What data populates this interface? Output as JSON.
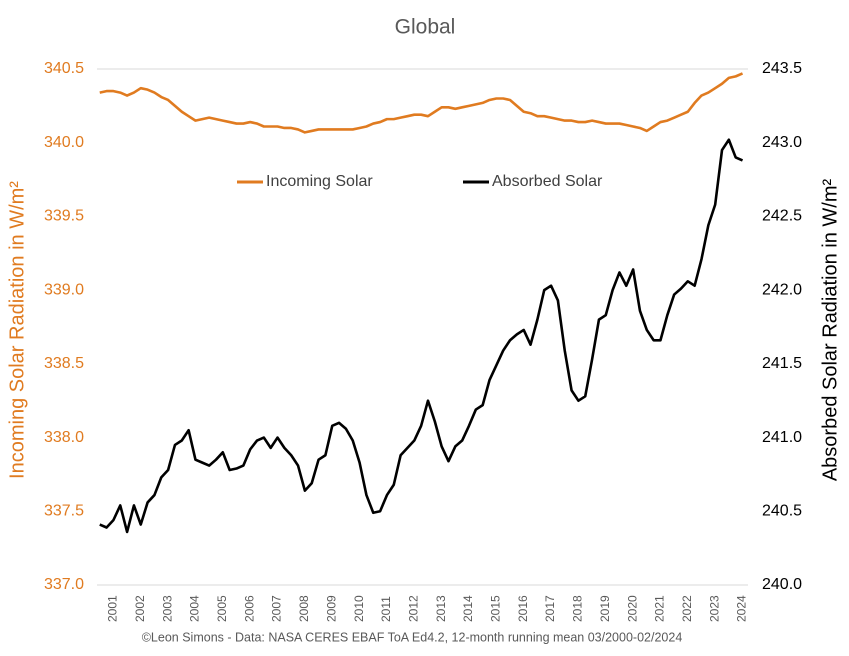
{
  "chart_data": {
    "type": "line",
    "title": "Global",
    "y_label": "Incoming Solar Radiation in W/m²",
    "y2_label": "Absorbed Solar Radiation in W/m²",
    "source": "©Leon Simons -  Data: NASA CERES EBAF ToA Ed4.2, 12-month running mean 03/2000-02/2024",
    "legend": "top-center",
    "x": [
      2000.5,
      2000.75,
      2001,
      2001.25,
      2001.5,
      2001.75,
      2002,
      2002.25,
      2002.5,
      2002.75,
      2003,
      2003.25,
      2003.5,
      2003.75,
      2004,
      2004.25,
      2004.5,
      2004.75,
      2005,
      2005.25,
      2005.5,
      2005.75,
      2006,
      2006.25,
      2006.5,
      2006.75,
      2007,
      2007.25,
      2007.5,
      2007.75,
      2008,
      2008.25,
      2008.5,
      2008.75,
      2009,
      2009.25,
      2009.5,
      2009.75,
      2010,
      2010.25,
      2010.5,
      2010.75,
      2011,
      2011.25,
      2011.5,
      2011.75,
      2012,
      2012.25,
      2012.5,
      2012.75,
      2013,
      2013.25,
      2013.5,
      2013.75,
      2014,
      2014.25,
      2014.5,
      2014.75,
      2015,
      2015.25,
      2015.5,
      2015.75,
      2016,
      2016.25,
      2016.5,
      2016.75,
      2017,
      2017.25,
      2017.5,
      2017.75,
      2018,
      2018.25,
      2018.5,
      2018.75,
      2019,
      2019.25,
      2019.5,
      2019.75,
      2020,
      2020.25,
      2020.5,
      2020.75,
      2021,
      2021.25,
      2021.5,
      2021.75,
      2022,
      2022.25,
      2022.5,
      2022.75,
      2023,
      2023.25,
      2023.5,
      2023.75,
      2024
    ],
    "series": [
      {
        "name": "Incoming Solar",
        "color": "#e07b20",
        "values": [
          340.34,
          340.35,
          340.35,
          340.34,
          340.32,
          340.34,
          340.37,
          340.36,
          340.34,
          340.31,
          340.29,
          340.25,
          340.21,
          340.18,
          340.15,
          340.16,
          340.17,
          340.16,
          340.15,
          340.14,
          340.13,
          340.13,
          340.14,
          340.13,
          340.11,
          340.11,
          340.11,
          340.1,
          340.1,
          340.09,
          340.07,
          340.08,
          340.09,
          340.09,
          340.09,
          340.09,
          340.09,
          340.09,
          340.1,
          340.11,
          340.13,
          340.14,
          340.16,
          340.16,
          340.17,
          340.18,
          340.19,
          340.19,
          340.18,
          340.21,
          340.24,
          340.24,
          340.23,
          340.24,
          340.25,
          340.26,
          340.27,
          340.29,
          340.3,
          340.3,
          340.29,
          340.25,
          340.21,
          340.2,
          340.18,
          340.18,
          340.17,
          340.16,
          340.15,
          340.15,
          340.14,
          340.14,
          340.15,
          340.14,
          340.13,
          340.13,
          340.13,
          340.12,
          340.11,
          340.1,
          340.08,
          340.11,
          340.14,
          340.15,
          340.17,
          340.19,
          340.21,
          340.27,
          340.32,
          340.34,
          340.37,
          340.4,
          340.44,
          340.45,
          340.47
        ]
      },
      {
        "name": "Absorbed Solar",
        "color": "#000000",
        "axis": "y2",
        "values": [
          240.41,
          240.39,
          240.44,
          240.54,
          240.36,
          240.54,
          240.41,
          240.56,
          240.61,
          240.73,
          240.78,
          240.95,
          240.98,
          241.05,
          240.85,
          240.83,
          240.81,
          240.85,
          240.9,
          240.78,
          240.79,
          240.81,
          240.92,
          240.98,
          241.0,
          240.93,
          241.0,
          240.93,
          240.88,
          240.81,
          240.64,
          240.69,
          240.85,
          240.88,
          241.08,
          241.1,
          241.06,
          240.98,
          240.83,
          240.61,
          240.49,
          240.5,
          240.61,
          240.68,
          240.88,
          240.93,
          240.98,
          241.08,
          241.25,
          241.11,
          240.94,
          240.84,
          240.94,
          240.98,
          241.08,
          241.19,
          241.22,
          241.39,
          241.49,
          241.59,
          241.66,
          241.7,
          241.73,
          241.63,
          241.8,
          242.0,
          242.03,
          241.93,
          241.59,
          241.32,
          241.25,
          241.28,
          241.53,
          241.8,
          241.83,
          242.0,
          242.12,
          242.03,
          242.14,
          241.86,
          241.73,
          241.66,
          241.66,
          241.83,
          241.97,
          242.01,
          242.06,
          242.03,
          242.21,
          242.44,
          242.58,
          242.95,
          243.02,
          242.9,
          242.88
        ]
      }
    ],
    "xlim": [
      2000.4,
      2024.2
    ],
    "xticks": [
      2001,
      2002,
      2003,
      2004,
      2005,
      2006,
      2007,
      2008,
      2009,
      2010,
      2011,
      2012,
      2013,
      2014,
      2015,
      2016,
      2017,
      2018,
      2019,
      2020,
      2021,
      2022,
      2023,
      2024
    ],
    "ylim": [
      337,
      340.5
    ],
    "yticks": [
      {
        "value": 337,
        "label": "337.0"
      },
      337.5,
      {
        "value": 338,
        "label": "338.0"
      },
      338.5,
      {
        "value": 339,
        "label": "339.0"
      },
      339.5,
      {
        "value": 340,
        "label": "340.0"
      },
      340.5
    ],
    "y2lim": [
      240,
      243.5
    ],
    "y2ticks": [
      {
        "value": 240,
        "label": "240.0"
      },
      240.5,
      {
        "value": 241,
        "label": "241.0"
      },
      241.5,
      {
        "value": 242,
        "label": "242.0"
      },
      242.5,
      {
        "value": 243,
        "label": "243.0"
      },
      243.5
    ]
  }
}
